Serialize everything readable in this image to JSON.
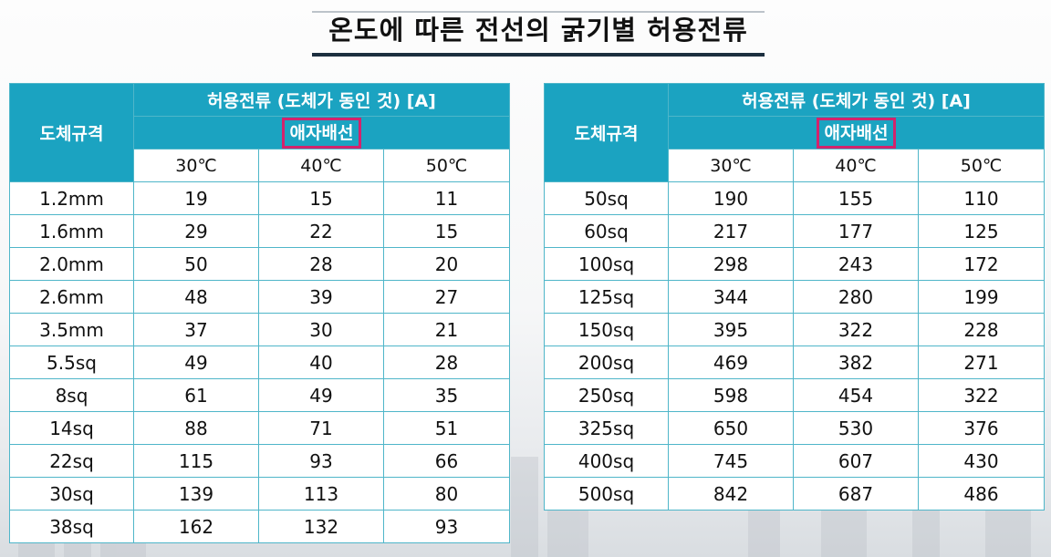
{
  "title": "온도에 따른 전선의 굵기별 허용전류",
  "tables": [
    {
      "col_header": "도체규격",
      "group_header": "허용전류 (도체가 동인 것) [A]",
      "sub_header": "애자배선",
      "temps": [
        "30℃",
        "40℃",
        "50℃"
      ],
      "rows": [
        [
          "1.2mm",
          "19",
          "15",
          "11"
        ],
        [
          "1.6mm",
          "29",
          "22",
          "15"
        ],
        [
          "2.0mm",
          "50",
          "28",
          "20"
        ],
        [
          "2.6mm",
          "48",
          "39",
          "27"
        ],
        [
          "3.5mm",
          "37",
          "30",
          "21"
        ],
        [
          "5.5sq",
          "49",
          "40",
          "28"
        ],
        [
          "8sq",
          "61",
          "49",
          "35"
        ],
        [
          "14sq",
          "88",
          "71",
          "51"
        ],
        [
          "22sq",
          "115",
          "93",
          "66"
        ],
        [
          "30sq",
          "139",
          "113",
          "80"
        ],
        [
          "38sq",
          "162",
          "132",
          "93"
        ]
      ]
    },
    {
      "col_header": "도체규격",
      "group_header": "허용전류 (도체가 동인 것) [A]",
      "sub_header": "애자배선",
      "temps": [
        "30℃",
        "40℃",
        "50℃"
      ],
      "rows": [
        [
          "50sq",
          "190",
          "155",
          "110"
        ],
        [
          "60sq",
          "217",
          "177",
          "125"
        ],
        [
          "100sq",
          "298",
          "243",
          "172"
        ],
        [
          "125sq",
          "344",
          "280",
          "199"
        ],
        [
          "150sq",
          "395",
          "322",
          "228"
        ],
        [
          "200sq",
          "469",
          "382",
          "271"
        ],
        [
          "250sq",
          "598",
          "454",
          "322"
        ],
        [
          "325sq",
          "650",
          "530",
          "376"
        ],
        [
          "400sq",
          "745",
          "607",
          "430"
        ],
        [
          "500sq",
          "842",
          "687",
          "486"
        ]
      ]
    }
  ],
  "colors": {
    "header": "#1ba3c1",
    "highlight": "#d3236c",
    "grid": "#4fb6c9"
  }
}
